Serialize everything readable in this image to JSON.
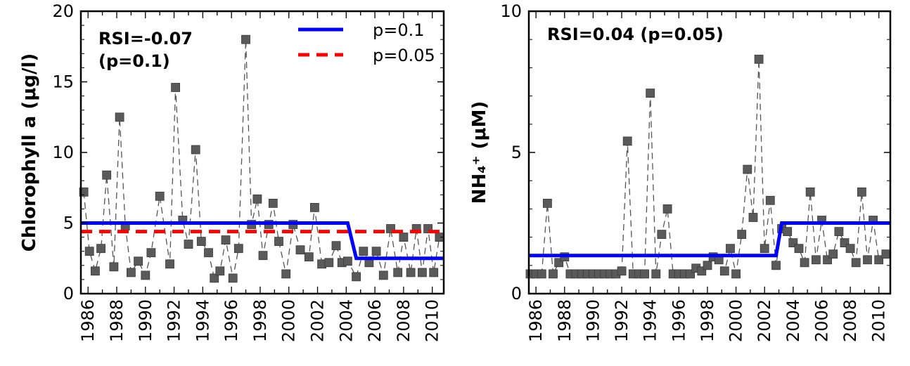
{
  "chart_data": [
    {
      "type": "line",
      "ylabel": "Chlorophyll a (μg/l)",
      "ylim": [
        0,
        20
      ],
      "yticks": [
        0,
        5,
        10,
        15,
        20
      ],
      "xlim": [
        1985.5,
        2010.8
      ],
      "xticks": [
        1986,
        1988,
        1990,
        1992,
        1994,
        1996,
        1998,
        2000,
        2002,
        2004,
        2006,
        2008,
        2010
      ],
      "annotation": [
        "RSI=-0.07",
        "(p=0.1)"
      ],
      "legend_position": "top-right",
      "series": [
        {
          "role": "observations",
          "color": "#5a5a5a",
          "marker": "square",
          "line_style": "dashed",
          "x": [
            1985.7,
            1986.1,
            1986.5,
            1986.9,
            1987.3,
            1987.8,
            1988.2,
            1988.6,
            1989.0,
            1989.5,
            1990.0,
            1990.4,
            1991.0,
            1991.7,
            1992.1,
            1992.6,
            1993.0,
            1993.5,
            1993.9,
            1994.4,
            1994.8,
            1995.2,
            1995.6,
            1996.1,
            1996.5,
            1997.0,
            1997.4,
            1997.8,
            1998.2,
            1998.6,
            1998.9,
            1999.3,
            1999.8,
            2000.3,
            2000.8,
            2001.4,
            2001.8,
            2002.3,
            2002.8,
            2003.3,
            2003.7,
            2004.1,
            2004.7,
            2005.2,
            2005.6,
            2006.1,
            2006.6,
            2007.1,
            2007.6,
            2008.0,
            2008.5,
            2008.9,
            2009.3,
            2009.7,
            2010.1,
            2010.5
          ],
          "y": [
            7.2,
            3.0,
            1.6,
            3.2,
            8.4,
            1.9,
            12.5,
            4.8,
            1.5,
            2.3,
            1.3,
            2.9,
            6.9,
            2.1,
            14.6,
            5.2,
            3.5,
            10.2,
            3.7,
            2.9,
            1.1,
            1.6,
            3.8,
            1.1,
            3.2,
            18.0,
            4.9,
            6.7,
            2.7,
            4.9,
            6.4,
            3.7,
            1.4,
            4.9,
            3.1,
            2.6,
            6.1,
            2.1,
            2.2,
            3.4,
            2.2,
            2.3,
            1.2,
            3.0,
            2.2,
            3.0,
            1.3,
            4.6,
            1.5,
            4.0,
            1.5,
            4.6,
            1.5,
            4.6,
            1.5,
            4.0
          ]
        },
        {
          "name": "p=0.1",
          "color": "#0000ff",
          "line_style": "solid",
          "x": [
            1985.5,
            2004.1,
            2004.7,
            2010.8
          ],
          "y": [
            5.0,
            5.0,
            2.5,
            2.5
          ]
        },
        {
          "name": "p=0.05",
          "color": "#ff0000",
          "line_style": "dashed",
          "x": [
            1985.5,
            2010.8
          ],
          "y": [
            4.4,
            4.4
          ]
        }
      ]
    },
    {
      "type": "line",
      "ylabel": "NH₄⁺ (μM)",
      "ylim": [
        0,
        10
      ],
      "yticks": [
        0,
        5,
        10
      ],
      "xlim": [
        1985.5,
        2010.8
      ],
      "xticks": [
        1986,
        1988,
        1990,
        1992,
        1994,
        1996,
        1998,
        2000,
        2002,
        2004,
        2006,
        2008,
        2010
      ],
      "annotation": [
        "RSI=0.04 (p=0.05)"
      ],
      "series": [
        {
          "role": "observations",
          "color": "#5a5a5a",
          "marker": "square",
          "line_style": "dashed",
          "x": [
            1985.6,
            1986.0,
            1986.4,
            1986.8,
            1987.2,
            1987.6,
            1988.0,
            1988.4,
            1988.8,
            1989.2,
            1989.6,
            1990.0,
            1990.4,
            1990.8,
            1991.2,
            1991.6,
            1992.0,
            1992.4,
            1992.8,
            1993.2,
            1993.6,
            1994.0,
            1994.4,
            1994.8,
            1995.2,
            1995.6,
            1996.0,
            1996.4,
            1996.8,
            1997.2,
            1997.6,
            1998.0,
            1998.4,
            1998.8,
            1999.2,
            1999.6,
            2000.0,
            2000.4,
            2000.8,
            2001.2,
            2001.6,
            2002.0,
            2002.4,
            2002.8,
            2003.2,
            2003.6,
            2004.0,
            2004.4,
            2004.8,
            2005.2,
            2005.6,
            2006.0,
            2006.4,
            2006.8,
            2007.2,
            2007.6,
            2008.0,
            2008.4,
            2008.8,
            2009.2,
            2009.6,
            2010.0,
            2010.5
          ],
          "y": [
            0.7,
            0.7,
            0.7,
            3.2,
            0.7,
            1.1,
            1.3,
            0.7,
            0.7,
            0.7,
            0.7,
            0.7,
            0.7,
            0.7,
            0.7,
            0.7,
            0.8,
            5.4,
            0.7,
            0.7,
            0.7,
            7.1,
            0.7,
            2.1,
            3.0,
            0.7,
            0.7,
            0.7,
            0.7,
            0.9,
            0.8,
            1.0,
            1.3,
            1.2,
            0.8,
            1.6,
            0.7,
            2.1,
            4.4,
            2.7,
            8.3,
            1.6,
            3.3,
            1.0,
            2.3,
            2.2,
            1.8,
            1.6,
            1.1,
            3.6,
            1.2,
            2.6,
            1.2,
            1.4,
            2.2,
            1.8,
            1.6,
            1.1,
            3.6,
            1.2,
            2.6,
            1.2,
            1.4
          ]
        },
        {
          "name": "p=0.1",
          "color": "#0000ff",
          "line_style": "solid",
          "x": [
            1985.5,
            2002.8,
            2003.2,
            2010.8
          ],
          "y": [
            1.35,
            1.35,
            2.5,
            2.5
          ]
        }
      ]
    }
  ]
}
